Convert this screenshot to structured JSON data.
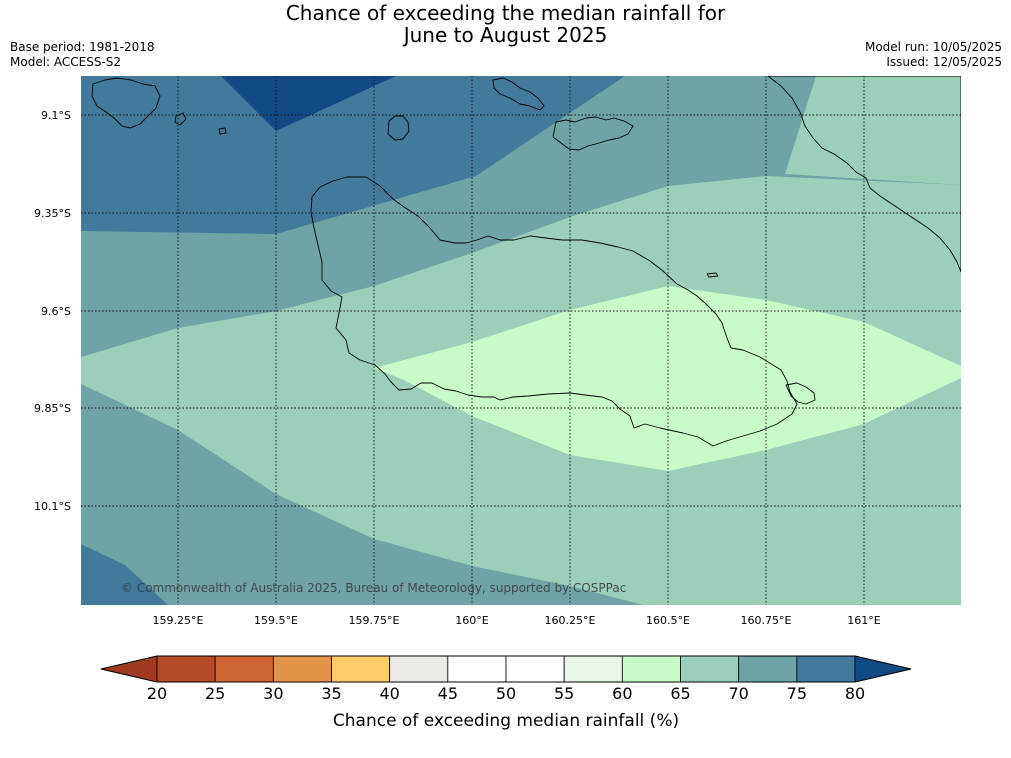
{
  "title": {
    "line1": "Chance of exceeding the median rainfall for",
    "line2": "June to August 2025"
  },
  "meta": {
    "base_period": "Base period: 1981-2018",
    "model": "Model: ACCESS-S2",
    "model_run": "Model run: 10/05/2025",
    "issued": "Issued: 12/05/2025"
  },
  "map": {
    "lat_labels": [
      "9.1°S",
      "9.35°S",
      "9.6°S",
      "9.85°S",
      "10.1°S"
    ],
    "lon_labels": [
      "159.25°E",
      "159.5°E",
      "159.75°E",
      "160°E",
      "160.25°E",
      "160.5°E",
      "160.75°E",
      "161°E"
    ],
    "copyright": "© Commonwealth of Australia 2025, Bureau of Meteorology, supported by COSPPac",
    "zone_colors": {
      "c80": "#124a86",
      "c75": "#437a9c",
      "c70": "#6fa3a6",
      "c65": "#9ccfb9",
      "c60": "#c9fbc9"
    }
  },
  "colorbar": {
    "ticks": [
      "20",
      "25",
      "30",
      "35",
      "40",
      "45",
      "50",
      "55",
      "60",
      "65",
      "70",
      "75",
      "80"
    ],
    "label": "Chance of exceeding median rainfall (%)",
    "low_extend_color": "#9e3a20",
    "high_extend_color": "#124a86",
    "segment_colors": [
      "#b44a28",
      "#d16636",
      "#e39446",
      "#fecc68",
      "#edeae5",
      "#ffffff",
      "#ffffff",
      "#e9f6e9",
      "#c9fbc9",
      "#9ccfb9",
      "#6fa3a6",
      "#437a9c"
    ]
  }
}
